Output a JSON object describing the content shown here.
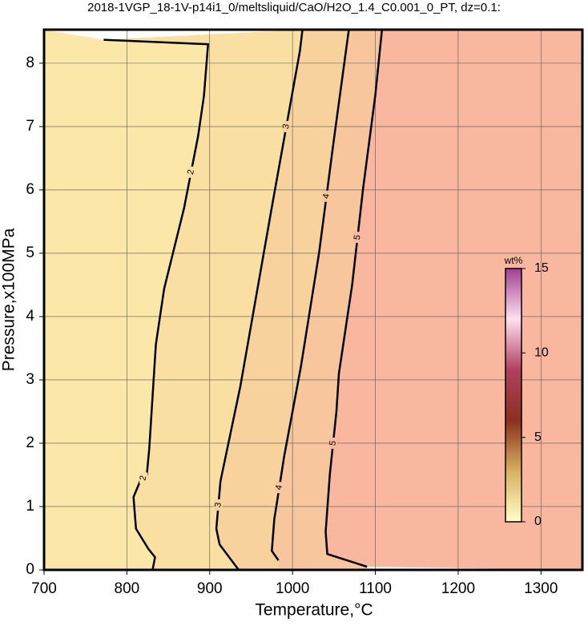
{
  "chart_data": {
    "type": "contour",
    "title": "2018-1VGP_18-1V-p14i1_0/meltsliquid/CaO/H2O_1.4_C0.001_0_PT, dz=0.1:",
    "x_label": "Temperature,°C",
    "y_label": "Pressure,x100MPa",
    "xlim": [
      700,
      1350
    ],
    "ylim": [
      0,
      8.53
    ],
    "xticks": [
      700,
      800,
      900,
      1000,
      1100,
      1200,
      1300
    ],
    "yticks": [
      0,
      1,
      2,
      3,
      4,
      5,
      6,
      7,
      8
    ],
    "grid": true,
    "region_colors": [
      "#fbe8a8",
      "#f9dfa2",
      "#f8d29c",
      "#f7c69c",
      "#f9b7a0"
    ],
    "contours": [
      {
        "level": 2,
        "x": [
          831,
          834,
          826,
          811,
          808,
          816,
          824,
          827,
          835,
          845,
          869,
          886,
          893,
          898,
          772
        ],
        "y": [
          0,
          0.2,
          0.33,
          0.65,
          1.15,
          1.4,
          1.5,
          1.91,
          3.56,
          4.44,
          5.71,
          6.85,
          7.48,
          8.3,
          8.37
        ]
      },
      {
        "level": 3,
        "x": [
          935,
          912,
          908,
          913,
          937,
          976,
          1009,
          1012
        ],
        "y": [
          0,
          0.4,
          0.65,
          1.4,
          2.9,
          5.8,
          8.2,
          8.53
        ]
      },
      {
        "level": 4,
        "x": [
          983,
          975,
          978,
          990,
          1010,
          1032,
          1050,
          1068
        ],
        "y": [
          0.15,
          0.3,
          0.8,
          1.8,
          3.2,
          5.0,
          6.8,
          8.53
        ]
      },
      {
        "level": 5,
        "x": [
          1090,
          1042,
          1040,
          1045,
          1053,
          1056,
          1072,
          1085,
          1100,
          1108
        ],
        "y": [
          0.05,
          0.25,
          0.6,
          1.5,
          2.5,
          3.1,
          4.5,
          6.0,
          7.5,
          8.53
        ]
      }
    ],
    "colorbar": {
      "label": "wt%",
      "lim": [
        0,
        15
      ],
      "ticks": [
        0,
        5,
        10,
        15
      ],
      "colors": [
        "#ffffc8",
        "#d8b060",
        "#8a3020",
        "#b04060",
        "#ffe0f0",
        "#a04090"
      ]
    }
  }
}
